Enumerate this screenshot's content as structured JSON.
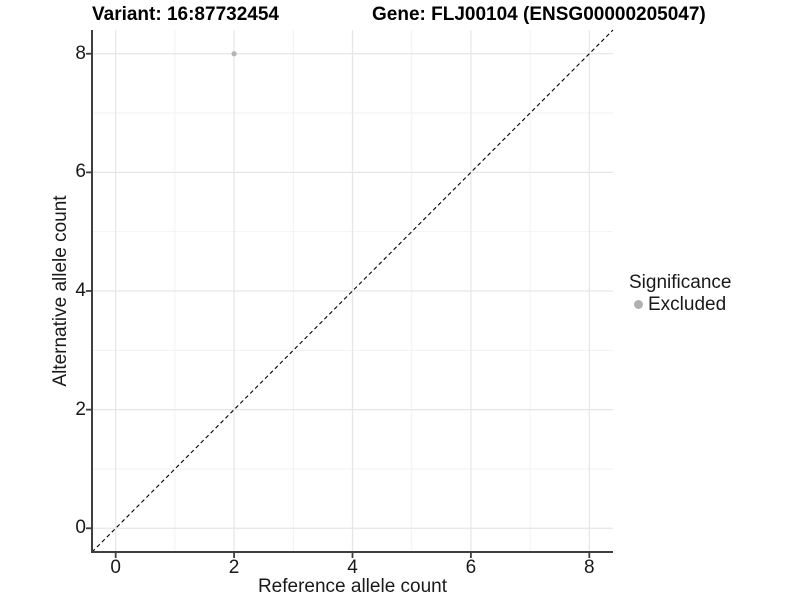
{
  "titles": {
    "variant": "Variant: 16:87732454",
    "gene": "Gene: FLJ00104 (ENSG00000205047)"
  },
  "legend": {
    "title": "Significance",
    "entries": [
      {
        "label": "Excluded",
        "color": "#b0b0b0"
      }
    ]
  },
  "colors": {
    "background": "#ffffff",
    "grid_major": "#e6e6e6",
    "grid_minor": "#f2f2f2",
    "axis_line": "#3f3f3f",
    "tick_text": "#1a1a1a",
    "identity_line": "#000000"
  },
  "chart_data": {
    "type": "scatter",
    "title": "Variant: 16:87732454  |  Gene: FLJ00104 (ENSG00000205047)",
    "xlabel": "Reference allele count",
    "ylabel": "Alternative allele count",
    "xlim": [
      -0.4,
      8.4
    ],
    "ylim": [
      -0.4,
      8.4
    ],
    "x_ticks": [
      0,
      2,
      4,
      6,
      8
    ],
    "y_ticks": [
      0,
      2,
      4,
      6,
      8
    ],
    "grid": "major and minor, light gray on white",
    "legend_position": "right",
    "series": [
      {
        "name": "Excluded",
        "color": "#b4b4b4",
        "points": [
          {
            "x": 2,
            "y": 8
          }
        ]
      }
    ],
    "reference_line": {
      "type": "identity",
      "slope": 1,
      "intercept": 0,
      "style": "dashed",
      "color": "#000000"
    }
  }
}
